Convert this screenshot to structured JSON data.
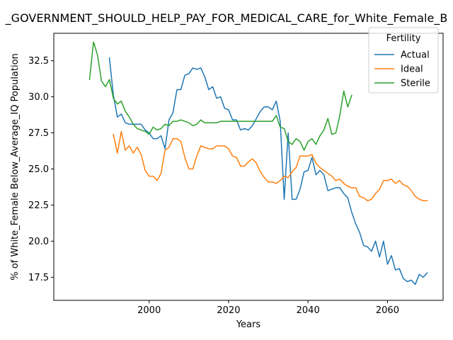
{
  "chart_data": {
    "type": "line",
    "title": "_GOVERNMENT_SHOULD_HELP_PAY_FOR_MEDICAL_CARE_for_White_Female_B",
    "xlabel": "Years",
    "ylabel": "% of White_Female Below_Average_IQ Population",
    "xlim": [
      1976,
      2074
    ],
    "ylim": [
      15.9,
      34.4
    ],
    "xticks": [
      2000,
      2020,
      2040,
      2060
    ],
    "yticks": [
      17.5,
      20.0,
      22.5,
      25.0,
      27.5,
      30.0,
      32.5
    ],
    "ytick_labels": [
      "17.5",
      "20.0",
      "22.5",
      "25.0",
      "27.5",
      "30.0",
      "32.5"
    ],
    "grid": false,
    "legend": {
      "title": "Fertility",
      "placement": "top-right"
    },
    "series": [
      {
        "name": "Actual",
        "color": "#1f77b4",
        "x": [
          1990,
          1991,
          1992,
          1993,
          1994,
          1995,
          1996,
          1997,
          1998,
          1999,
          2000,
          2001,
          2002,
          2003,
          2004,
          2005,
          2006,
          2007,
          2008,
          2009,
          2010,
          2011,
          2012,
          2013,
          2014,
          2015,
          2016,
          2017,
          2018,
          2019,
          2020,
          2021,
          2022,
          2023,
          2024,
          2025,
          2026,
          2027,
          2028,
          2029,
          2030,
          2031,
          2032,
          2033,
          2034,
          2035,
          2036,
          2037,
          2038,
          2039,
          2040,
          2041,
          2042,
          2043,
          2044,
          2045,
          2046,
          2047,
          2048,
          2049,
          2050,
          2051,
          2052,
          2053,
          2054,
          2055,
          2056,
          2057,
          2058,
          2059,
          2060,
          2061,
          2062,
          2063,
          2064,
          2065,
          2066,
          2067,
          2068,
          2069,
          2070
        ],
        "values": [
          32.7,
          30.1,
          28.6,
          28.8,
          28.2,
          28.1,
          28.1,
          28.1,
          28.1,
          27.7,
          27.5,
          27.1,
          27.1,
          27.3,
          26.4,
          28.4,
          28.9,
          30.5,
          30.5,
          31.5,
          31.6,
          32.0,
          31.9,
          32.0,
          31.4,
          30.5,
          30.7,
          29.9,
          30.0,
          29.2,
          29.1,
          28.4,
          28.4,
          27.7,
          27.8,
          27.7,
          28.0,
          28.5,
          29.0,
          29.3,
          29.3,
          29.1,
          29.7,
          28.3,
          22.9,
          27.5,
          22.9,
          22.9,
          23.6,
          24.8,
          24.9,
          25.8,
          24.6,
          24.9,
          24.6,
          23.5,
          23.6,
          23.7,
          23.7,
          23.3,
          23.0,
          22.0,
          21.2,
          20.6,
          19.7,
          19.6,
          19.3,
          20.0,
          18.9,
          20.0,
          18.4,
          19.0,
          18.0,
          18.1,
          17.4,
          17.2,
          17.3,
          17.0,
          17.7,
          17.5,
          17.8
        ]
      },
      {
        "name": "Ideal",
        "color": "#ff7f0e",
        "x": [
          1991,
          1992,
          1993,
          1994,
          1995,
          1996,
          1997,
          1998,
          1999,
          2000,
          2001,
          2002,
          2003,
          2004,
          2005,
          2006,
          2007,
          2008,
          2009,
          2010,
          2011,
          2012,
          2013,
          2014,
          2015,
          2016,
          2017,
          2018,
          2019,
          2020,
          2021,
          2022,
          2023,
          2024,
          2025,
          2026,
          2027,
          2028,
          2029,
          2030,
          2031,
          2032,
          2033,
          2034,
          2035,
          2036,
          2037,
          2038,
          2039,
          2040,
          2041,
          2042,
          2043,
          2044,
          2045,
          2046,
          2047,
          2048,
          2049,
          2050,
          2051,
          2052,
          2053,
          2054,
          2055,
          2056,
          2057,
          2058,
          2059,
          2060,
          2061,
          2062,
          2063,
          2064,
          2065,
          2066,
          2067,
          2068,
          2069,
          2070
        ],
        "values": [
          27.4,
          26.1,
          27.6,
          26.3,
          26.6,
          26.1,
          26.5,
          26.0,
          24.9,
          24.5,
          24.5,
          24.2,
          24.7,
          26.3,
          26.5,
          27.1,
          27.1,
          26.9,
          25.8,
          25.0,
          25.0,
          25.9,
          26.6,
          26.5,
          26.4,
          26.4,
          26.6,
          26.6,
          26.6,
          26.4,
          25.9,
          25.8,
          25.2,
          25.2,
          25.5,
          25.7,
          25.4,
          24.8,
          24.4,
          24.1,
          24.1,
          24.0,
          24.2,
          24.5,
          24.4,
          24.8,
          25.1,
          25.9,
          25.9,
          25.9,
          26.0,
          25.4,
          25.1,
          24.9,
          24.7,
          24.5,
          24.2,
          24.3,
          24.0,
          23.8,
          23.7,
          23.7,
          23.1,
          23.0,
          22.8,
          22.9,
          23.3,
          23.6,
          24.2,
          24.2,
          24.3,
          24.0,
          24.2,
          23.9,
          23.8,
          23.5,
          23.1,
          22.9,
          22.8,
          22.8
        ]
      },
      {
        "name": "Sterile",
        "color": "#2ca02c",
        "x": [
          1985,
          1986,
          1987,
          1988,
          1989,
          1990,
          1991,
          1992,
          1993,
          1994,
          1995,
          1996,
          1997,
          1998,
          1999,
          2000,
          2001,
          2002,
          2003,
          2004,
          2005,
          2006,
          2007,
          2008,
          2009,
          2010,
          2011,
          2012,
          2013,
          2014,
          2015,
          2016,
          2017,
          2018,
          2019,
          2020,
          2021,
          2022,
          2023,
          2024,
          2025,
          2026,
          2027,
          2028,
          2029,
          2030,
          2031,
          2032,
          2033,
          2034,
          2035,
          2036,
          2037,
          2038,
          2039,
          2040,
          2041,
          2042,
          2043,
          2044,
          2045,
          2046,
          2047,
          2048,
          2049,
          2050,
          2051
        ],
        "values": [
          31.2,
          33.8,
          32.9,
          31.1,
          30.7,
          31.2,
          29.9,
          29.5,
          29.7,
          29.0,
          28.6,
          28.1,
          27.8,
          27.7,
          27.6,
          27.4,
          27.9,
          27.7,
          27.8,
          28.1,
          28.0,
          28.3,
          28.3,
          28.4,
          28.3,
          28.2,
          28.0,
          28.1,
          28.4,
          28.2,
          28.2,
          28.2,
          28.2,
          28.3,
          28.3,
          28.3,
          28.3,
          28.3,
          28.3,
          28.3,
          28.3,
          28.3,
          28.3,
          28.3,
          28.3,
          28.3,
          28.3,
          28.7,
          27.9,
          27.8,
          26.9,
          26.7,
          27.1,
          26.9,
          26.3,
          26.9,
          27.1,
          26.7,
          27.3,
          27.7,
          28.5,
          27.4,
          27.5,
          28.7,
          30.4,
          29.3,
          30.1
        ]
      }
    ]
  }
}
